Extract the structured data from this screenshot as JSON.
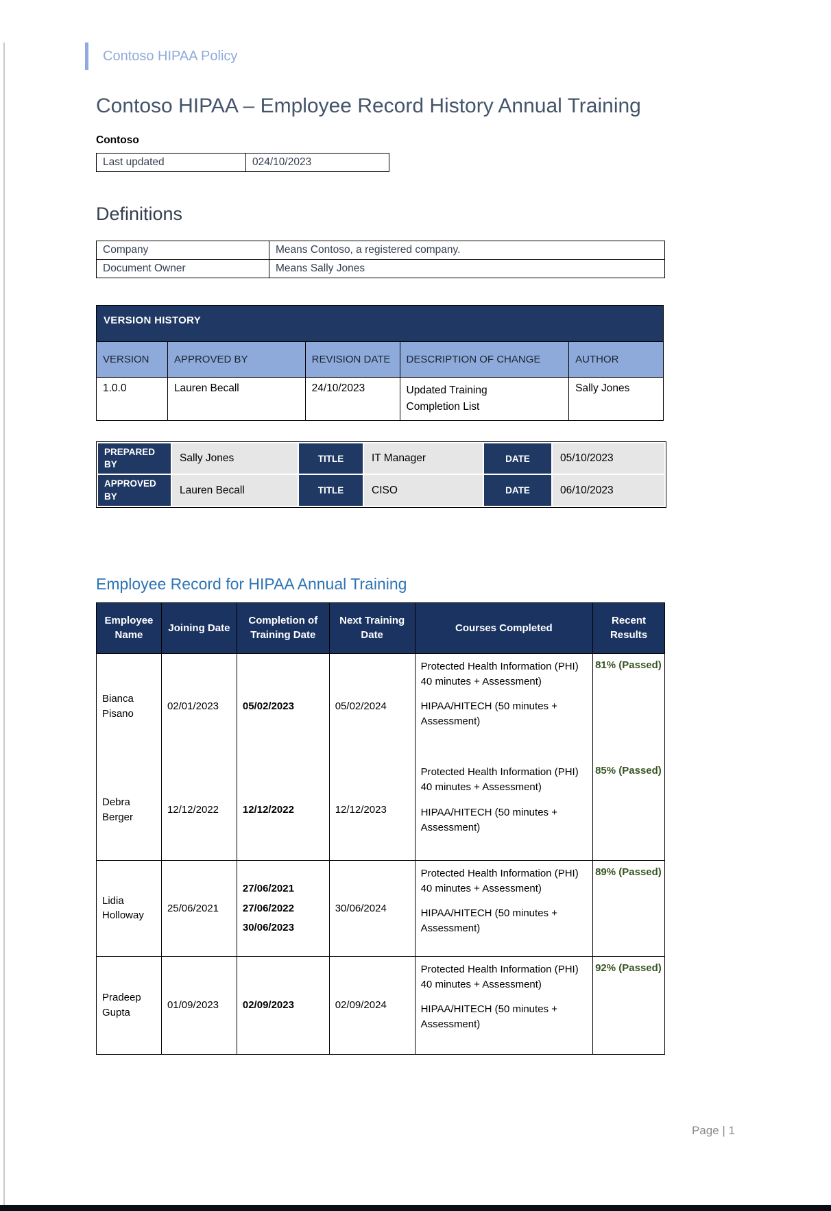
{
  "colors": {
    "accent_light_blue": "#8FAADC",
    "navy": "#1F3864",
    "table_header_navy": "#1B3361",
    "version_header_row_blue": "#8EAADB",
    "signoff_value_gray": "#E7E6E6",
    "title_slate": "#44546A",
    "heading_slate": "#333F50",
    "heading_blue": "#2E74B5",
    "pass_green": "#375623",
    "footer_gray": "#8a8a8a"
  },
  "header": {
    "label": "Contoso HIPAA Policy"
  },
  "document": {
    "title": "Contoso HIPAA – Employee Record History Annual Training",
    "company": "Contoso",
    "footer": "Page | 1"
  },
  "last_updated": {
    "label": "Last updated",
    "value": "024/10/2023"
  },
  "definitions": {
    "heading": "Definitions",
    "rows": [
      {
        "term": "Company",
        "definition": "Means Contoso, a registered company."
      },
      {
        "term": "Document Owner",
        "definition": "Means Sally Jones"
      }
    ]
  },
  "version_history": {
    "title": "VERSION HISTORY",
    "columns": [
      "VERSION",
      "APPROVED BY",
      "REVISION DATE",
      "DESCRIPTION OF CHANGE",
      "AUTHOR"
    ],
    "rows": [
      {
        "version": "1.0.0",
        "approved_by": "Lauren Becall",
        "revision_date": "24/10/2023",
        "description": "Updated Training Completion List",
        "author": "Sally Jones"
      }
    ]
  },
  "signoff": {
    "rows": [
      {
        "role": "PREPARED BY",
        "name": "Sally Jones",
        "title_label": "TITLE",
        "title_value": "IT Manager",
        "date_label": "DATE",
        "date_value": "05/10/2023"
      },
      {
        "role": "APPROVED BY",
        "name": "Lauren Becall",
        "title_label": "TITLE",
        "title_value": "CISO",
        "date_label": "DATE",
        "date_value": "06/10/2023"
      }
    ]
  },
  "training": {
    "heading": "Employee Record for HIPAA Annual Training",
    "columns": [
      "Employee Name",
      "Joining Date",
      "Completion of Training Date",
      "Next Training Date",
      "Courses Completed",
      "Recent Results"
    ],
    "rows": [
      {
        "name": "Bianca Pisano",
        "joining_date": "02/01/2023",
        "completion_dates": [
          "05/02/2023"
        ],
        "next_training_date": "05/02/2024",
        "courses": [
          "Protected Health Information (PHI) 40 minutes + Assessment)",
          "HIPAA/HITECH (50 minutes + Assessment)"
        ],
        "recent_result": "81% (Passed)"
      },
      {
        "name": "Debra Berger",
        "joining_date": "12/12/2022",
        "completion_dates": [
          "12/12/2022"
        ],
        "next_training_date": "12/12/2023",
        "courses": [
          "Protected Health Information (PHI) 40 minutes + Assessment)",
          "HIPAA/HITECH (50 minutes + Assessment)"
        ],
        "recent_result": "85% (Passed)"
      },
      {
        "name": "Lidia Holloway",
        "joining_date": "25/06/2021",
        "completion_dates": [
          "27/06/2021",
          "27/06/2022",
          "30/06/2023"
        ],
        "next_training_date": "30/06/2024",
        "courses": [
          "Protected Health Information (PHI) 40 minutes + Assessment)",
          "HIPAA/HITECH (50 minutes + Assessment)"
        ],
        "recent_result": "89% (Passed)"
      },
      {
        "name": "Pradeep Gupta",
        "joining_date": "01/09/2023",
        "completion_dates": [
          "02/09/2023"
        ],
        "next_training_date": "02/09/2024",
        "courses": [
          "Protected Health Information (PHI) 40 minutes + Assessment)",
          "HIPAA/HITECH (50 minutes + Assessment)"
        ],
        "recent_result": "92% (Passed)"
      }
    ]
  }
}
